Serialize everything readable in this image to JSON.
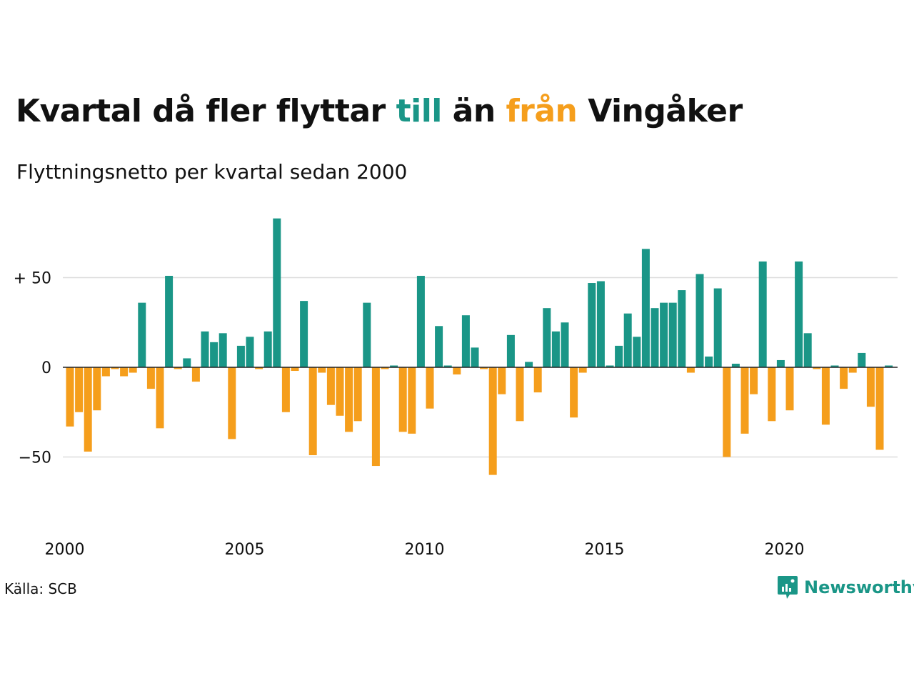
{
  "title": {
    "part1": "Kvartal då fler flyttar ",
    "pos_word": "till",
    "part2": " än ",
    "neg_word": "från",
    "part3": " Vingåker"
  },
  "subtitle": "Flyttningsnetto per kvartal sedan 2000",
  "source": "Källa: SCB",
  "brand": "Newsworthy",
  "colors": {
    "positive": "#1a9687",
    "negative": "#f59e1c",
    "grid": "#dddddd",
    "text": "#111111"
  },
  "chart_data": {
    "type": "bar",
    "start_year": 2000,
    "periods_per_year": 4,
    "x_ticks": [
      {
        "year": 2000,
        "label": "2000"
      },
      {
        "year": 2005,
        "label": "2005"
      },
      {
        "year": 2010,
        "label": "2010"
      },
      {
        "year": 2015,
        "label": "2015"
      },
      {
        "year": 2020,
        "label": "2020"
      }
    ],
    "y_ticks": [
      {
        "value": 50,
        "label": "+ 50"
      },
      {
        "value": 0,
        "label": "0"
      },
      {
        "value": -50,
        "label": "−50"
      }
    ],
    "ylim": [
      -77,
      90
    ],
    "grid": true,
    "values": [
      -33,
      -25,
      -47,
      -24,
      -5,
      -1,
      -5,
      -3,
      36,
      -12,
      -34,
      51,
      -1,
      5,
      -8,
      20,
      14,
      19,
      -40,
      12,
      17,
      -1,
      20,
      83,
      -25,
      -2,
      37,
      -49,
      -3,
      -21,
      -27,
      -36,
      -30,
      36,
      -55,
      -1,
      1,
      -36,
      -37,
      51,
      -23,
      23,
      1,
      -4,
      29,
      11,
      -1,
      -60,
      -15,
      18,
      -30,
      3,
      -14,
      33,
      20,
      25,
      -28,
      -3,
      47,
      48,
      1,
      12,
      30,
      17,
      66,
      33,
      36,
      36,
      43,
      -3,
      52,
      6,
      44,
      -50,
      2,
      -37,
      -15,
      59,
      -30,
      4,
      -24,
      59,
      19,
      -1,
      -32,
      1,
      -12,
      -3,
      8,
      -22,
      -46,
      1
    ]
  }
}
